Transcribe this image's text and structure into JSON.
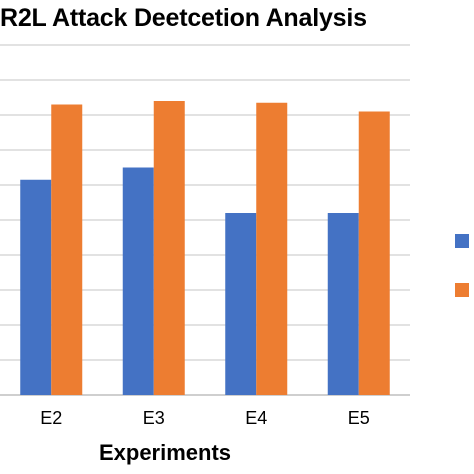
{
  "chart_data": {
    "type": "bar",
    "title": "R2L Attack Deetcetion Analysis",
    "xlabel": "Experiments",
    "ylabel": "",
    "categories": [
      "E2",
      "E3",
      "E4",
      "E5"
    ],
    "series": [
      {
        "color": "#4472C4",
        "values": [
          6.15,
          6.5,
          5.2,
          5.2
        ]
      },
      {
        "color": "#ED7D31",
        "values": [
          8.3,
          8.4,
          8.35,
          8.1
        ]
      }
    ],
    "ylim": [
      0,
      10
    ],
    "grid": true,
    "legend_position": "right"
  }
}
